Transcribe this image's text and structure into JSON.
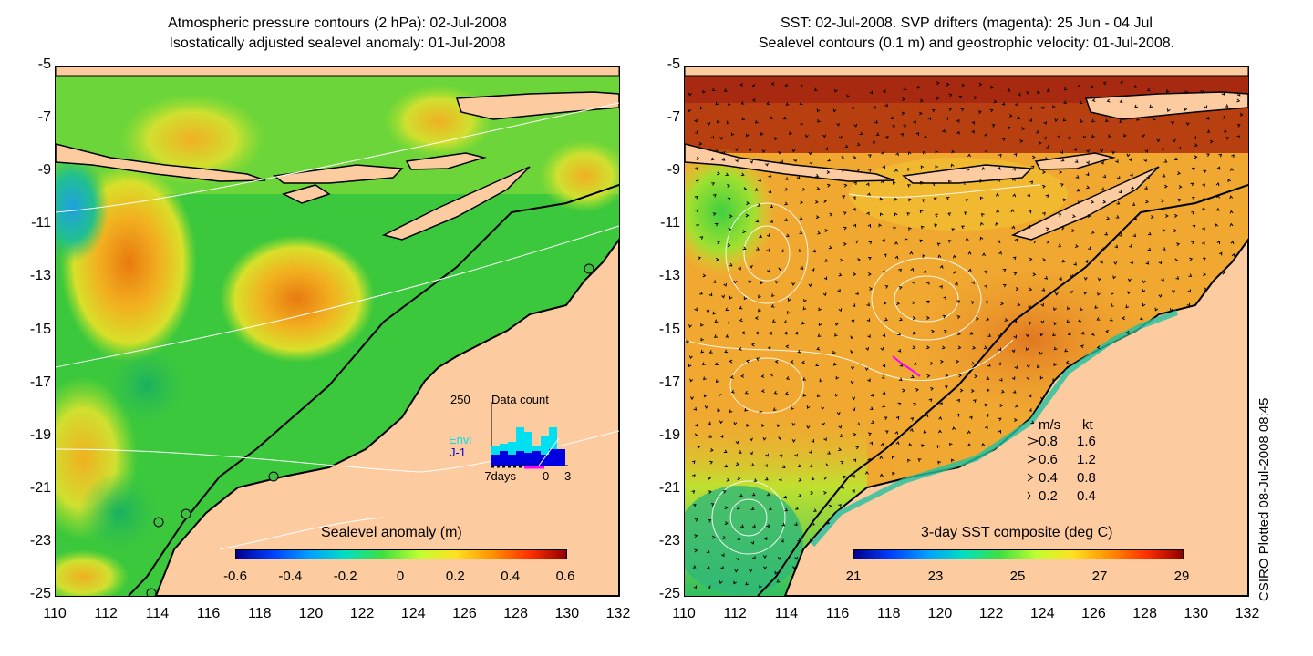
{
  "left_panel": {
    "title_line1": "Atmospheric pressure contours (2 hPa): 02-Jul-2008",
    "title_line2": "Isostatically adjusted sealevel anomaly: 01-Jul-2008",
    "colorbar_label": "Sealevel anomaly (m)",
    "colorbar_ticks": [
      "-0.6",
      "-0.4",
      "-0.2",
      "0",
      "0.2",
      "0.4",
      "0.6"
    ],
    "inset": {
      "count_label": "250",
      "title": "Data count",
      "series_envi": "Envi",
      "series_j1": "J-1",
      "x_left": "-7days",
      "x_mid": "0",
      "x_right": "3"
    }
  },
  "right_panel": {
    "title_line1": "SST: 02-Jul-2008. SVP drifters (magenta): 25 Jun - 04 Jul",
    "title_line2": "Sealevel contours (0.1 m) and geostrophic velocity: 01-Jul-2008.",
    "colorbar_label": "3-day SST composite (deg C)",
    "colorbar_ticks": [
      "21",
      "23",
      "25",
      "27",
      "29"
    ],
    "velocity_legend": {
      "header_ms": "m/s",
      "header_kt": "kt",
      "rows": [
        {
          "ms": "0.8",
          "kt": "1.6"
        },
        {
          "ms": "0.6",
          "kt": "1.2"
        },
        {
          "ms": "0.4",
          "kt": "0.8"
        },
        {
          "ms": "0.2",
          "kt": "0.4"
        }
      ]
    }
  },
  "axes": {
    "y_ticks": [
      "-5",
      "-7",
      "-9",
      "-11",
      "-13",
      "-15",
      "-17",
      "-19",
      "-21",
      "-23",
      "-25"
    ],
    "x_ticks": [
      "110",
      "112",
      "114",
      "116",
      "118",
      "120",
      "122",
      "124",
      "126",
      "128",
      "130",
      "132"
    ]
  },
  "side_note": "CSIRO Plotted 08-Jul-2008 08:45",
  "colors": {
    "land": "#fdcba0",
    "anomaly_base": "#40d040",
    "sst_base": "#f0a030",
    "coast": "#000000",
    "drifter": "#ff00ff"
  }
}
